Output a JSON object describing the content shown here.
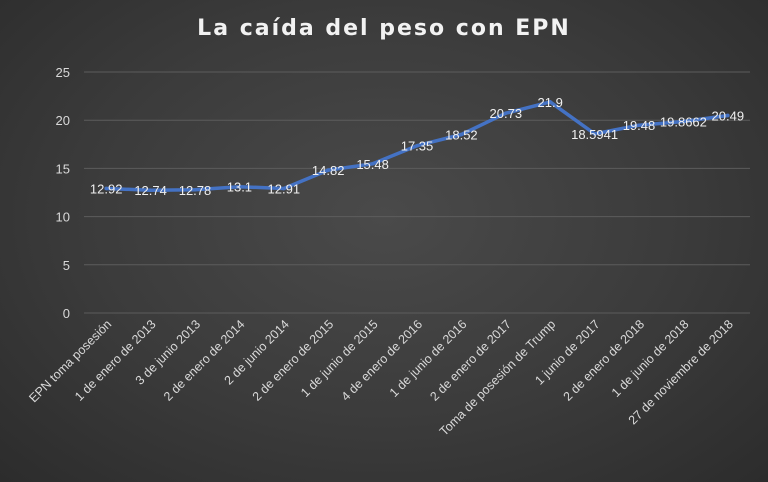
{
  "chart_data": {
    "type": "line",
    "title": "La caída del peso con EPN",
    "xlabel": "",
    "ylabel": "",
    "ylim": [
      0,
      25
    ],
    "yticks": [
      0,
      5,
      10,
      15,
      20,
      25
    ],
    "grid": true,
    "categories": [
      "EPN toma posesión",
      "1 de enero de 2013",
      "3 de junio 2013",
      "2 de enero de 2014",
      "2 de junio 2014",
      "2 de enero de 2015",
      "1 de junio de 2015",
      "4 de enero de 2016",
      "1 de junio de 2016",
      "2 de enero de 2017",
      "Toma de posesión de Trump",
      "1 junio de 2017",
      "2 de enero de 2018",
      "1 de junio de 2018",
      "27 de noviembre de 2018"
    ],
    "values": [
      12.92,
      12.74,
      12.78,
      13.1,
      12.91,
      14.82,
      15.48,
      17.35,
      18.52,
      20.73,
      21.9,
      18.5941,
      19.48,
      19.8662,
      20.49
    ],
    "data_labels": [
      "12.92",
      "12.74",
      "12.78",
      "13.1",
      "12.91",
      "14.82",
      "15.48",
      "17.35",
      "18.52",
      "20.73",
      "21.9",
      "18.5941",
      "19.48",
      "19.8662",
      "20.49"
    ],
    "line_color": "#4472c4"
  }
}
